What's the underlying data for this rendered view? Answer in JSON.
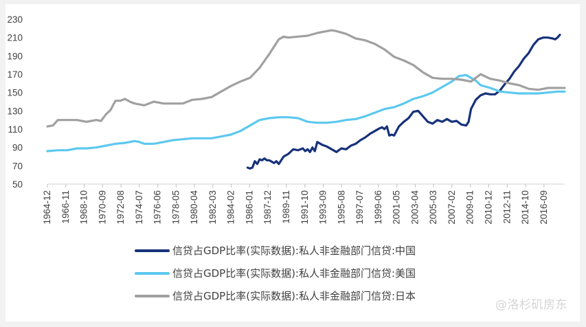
{
  "chart_data": {
    "type": "line",
    "title": "",
    "xlabel": "",
    "ylabel": "",
    "ylim": [
      50,
      230
    ],
    "yticks": [
      50,
      70,
      90,
      110,
      130,
      150,
      170,
      190,
      210,
      230
    ],
    "xlim": [
      1964.92,
      2018.75
    ],
    "xtick_labels": [
      "1964-12",
      "1966-11",
      "1968-10",
      "1970-09",
      "1972-08",
      "1974-07",
      "1976-06",
      "1978-05",
      "1980-04",
      "1982-03",
      "1984-02",
      "1986-01",
      "1987-12",
      "1989-11",
      "1991-10",
      "1993-09",
      "1995-08",
      "1997-07",
      "1999-06",
      "2001-05",
      "2003-04",
      "2005-03",
      "2007-02",
      "2009-01",
      "2010-12",
      "2012-11",
      "2014-10",
      "2016-09"
    ],
    "grid": false,
    "legend_position": "bottom",
    "series": [
      {
        "name": "信贷占GDP比率(实际数据):私人非金融部门信贷:中国",
        "color": "#17317a",
        "x": [
          1985.75,
          1986.0,
          1986.25,
          1986.5,
          1986.75,
          1987.0,
          1987.25,
          1987.5,
          1987.75,
          1988.0,
          1988.5,
          1988.75,
          1989.0,
          1989.5,
          1990.0,
          1990.5,
          1991.0,
          1991.5,
          1991.75,
          1992.0,
          1992.25,
          1992.5,
          1992.75,
          1993.0,
          1993.5,
          1994.0,
          1994.5,
          1995.0,
          1995.5,
          1996.0,
          1996.5,
          1997.0,
          1997.5,
          1998.0,
          1998.5,
          1999.0,
          1999.5,
          1999.75,
          2000.0,
          2000.25,
          2000.5,
          2000.75,
          2001.0,
          2001.5,
          2002.0,
          2002.5,
          2003.0,
          2003.5,
          2004.0,
          2004.5,
          2005.0,
          2005.5,
          2006.0,
          2006.5,
          2007.0,
          2007.5,
          2008.0,
          2008.5,
          2008.75,
          2009.0,
          2009.5,
          2010.0,
          2010.5,
          2011.0,
          2011.5,
          2012.0,
          2012.5,
          2013.0,
          2013.5,
          2014.0,
          2014.5,
          2015.0,
          2015.5,
          2016.0,
          2016.5,
          2017.0,
          2017.5,
          2017.75,
          2018.0,
          2018.25
        ],
        "values": [
          68,
          67,
          68,
          75,
          72,
          77,
          76,
          78,
          76,
          76,
          73,
          75,
          72,
          80,
          83,
          88,
          87,
          89,
          86,
          88,
          85,
          90,
          86,
          96,
          93,
          91,
          88,
          85,
          89,
          88,
          92,
          94,
          98,
          101,
          105,
          108,
          111,
          112,
          110,
          113,
          103,
          104,
          103,
          113,
          118,
          122,
          129,
          130,
          124,
          118,
          116,
          120,
          118,
          121,
          118,
          119,
          115,
          114,
          118,
          132,
          142,
          147,
          149,
          148,
          148,
          152,
          159,
          165,
          173,
          179,
          187,
          193,
          202,
          208,
          210,
          210,
          209,
          208,
          210,
          213
        ]
      },
      {
        "name": "信贷占GDP比率(实际数据):私人非金融部门信贷:美国",
        "color": "#5cc8ef",
        "x": [
          1964.92,
          1966.0,
          1967.0,
          1968.0,
          1969.0,
          1970.0,
          1971.0,
          1972.0,
          1973.0,
          1974.0,
          1974.5,
          1975.0,
          1976.0,
          1977.0,
          1978.0,
          1979.0,
          1980.0,
          1981.0,
          1982.0,
          1983.0,
          1984.0,
          1985.0,
          1986.0,
          1987.0,
          1988.0,
          1989.0,
          1990.0,
          1991.0,
          1992.0,
          1993.0,
          1994.0,
          1995.0,
          1996.0,
          1997.0,
          1998.0,
          1999.0,
          2000.0,
          2001.0,
          2002.0,
          2003.0,
          2004.0,
          2005.0,
          2006.0,
          2007.0,
          2007.75,
          2008.5,
          2009.0,
          2009.5,
          2010.0,
          2011.0,
          2012.0,
          2013.0,
          2014.0,
          2015.0,
          2016.0,
          2017.0,
          2018.0,
          2018.75
        ],
        "values": [
          86,
          87,
          87,
          89,
          89,
          90,
          92,
          94,
          95,
          97,
          96,
          94,
          94,
          96,
          98,
          99,
          100,
          100,
          100,
          102,
          104,
          108,
          114,
          120,
          122,
          123,
          123,
          122,
          118,
          117,
          117,
          118,
          120,
          121,
          124,
          128,
          132,
          134,
          138,
          143,
          146,
          150,
          156,
          162,
          168,
          169,
          166,
          163,
          158,
          155,
          151,
          150,
          149,
          149,
          149,
          150,
          151,
          151
        ]
      },
      {
        "name": "信贷占GDP比率(实际数据):私人非金融部门信贷:日本",
        "color": "#a0a0a0",
        "x": [
          1964.92,
          1965.5,
          1966.0,
          1967.0,
          1968.0,
          1969.0,
          1969.5,
          1970.0,
          1970.5,
          1971.0,
          1971.5,
          1972.0,
          1972.5,
          1973.0,
          1973.5,
          1974.0,
          1975.0,
          1976.0,
          1977.0,
          1978.0,
          1979.0,
          1980.0,
          1981.0,
          1982.0,
          1983.0,
          1984.0,
          1985.0,
          1986.0,
          1987.0,
          1988.0,
          1989.0,
          1989.5,
          1990.0,
          1991.0,
          1992.0,
          1993.0,
          1994.0,
          1994.5,
          1995.0,
          1996.0,
          1997.0,
          1998.0,
          1999.0,
          2000.0,
          2001.0,
          2002.0,
          2003.0,
          2004.0,
          2005.0,
          2006.0,
          2007.0,
          2008.0,
          2009.0,
          2009.5,
          2010.0,
          2011.0,
          2012.0,
          2013.0,
          2014.0,
          2015.0,
          2016.0,
          2017.0,
          2018.0,
          2018.75
        ],
        "values": [
          113,
          114,
          120,
          120,
          120,
          118,
          119,
          120,
          119,
          126,
          131,
          141,
          141,
          143,
          140,
          138,
          136,
          140,
          138,
          138,
          138,
          142,
          143,
          145,
          151,
          157,
          162,
          166,
          177,
          192,
          208,
          211,
          210,
          211,
          212,
          215,
          217,
          218,
          217,
          214,
          209,
          207,
          203,
          197,
          189,
          185,
          180,
          172,
          166,
          165,
          165,
          164,
          162,
          166,
          170,
          165,
          163,
          160,
          158,
          154,
          153,
          155,
          155,
          155
        ]
      }
    ]
  },
  "watermark": "@洛杉矶房东"
}
